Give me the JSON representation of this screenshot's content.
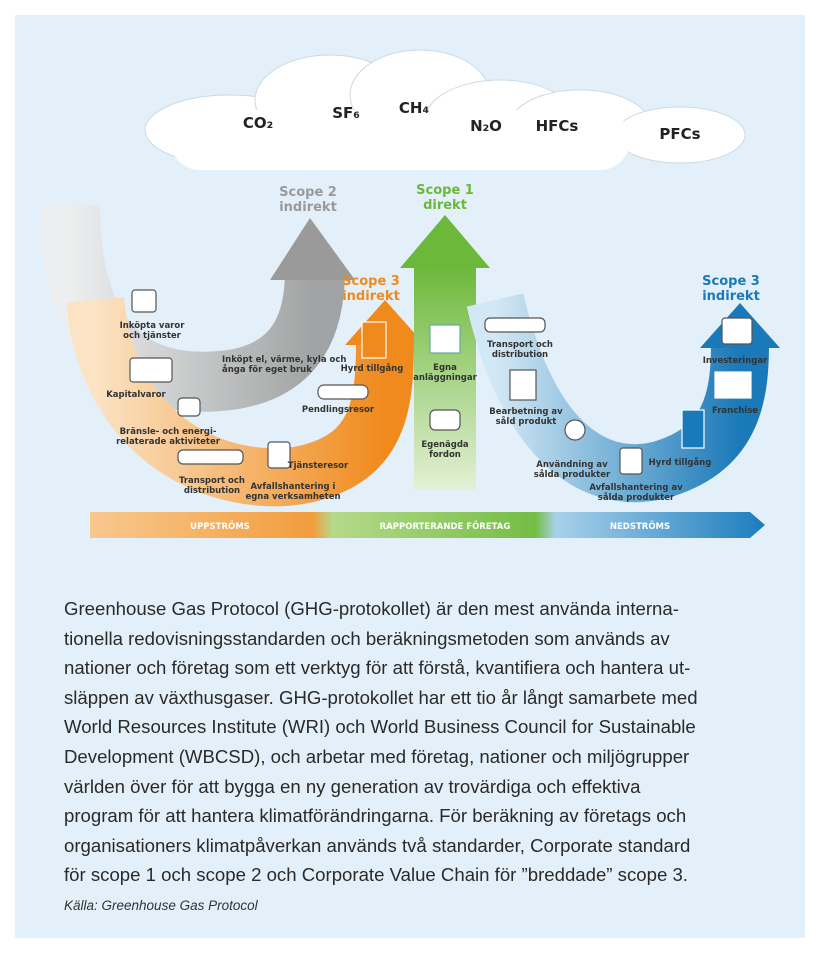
{
  "gases": [
    "CO₂",
    "SF₆",
    "CH₄",
    "N₂O",
    "HFCs",
    "PFCs"
  ],
  "scopes": {
    "scope2": [
      "Scope 2",
      "indirekt"
    ],
    "scope1": [
      "Scope 1",
      "direkt"
    ],
    "scope3_up": [
      "Scope 3",
      "indirekt"
    ],
    "scope3_down": [
      "Scope 3",
      "indirekt"
    ]
  },
  "upstream_labels": [
    [
      "Inköpta varor",
      "och tjänster"
    ],
    [
      "Kapitalvaror"
    ],
    [
      "Bränsle- och energi-",
      "relaterade aktiviteter"
    ],
    [
      "Transport och",
      "distribution"
    ],
    [
      "Avfallshantering i",
      "egna verksamheten"
    ],
    [
      "Inköpt el, värme, kyla och",
      "ånga för eget bruk"
    ],
    [
      "Tjänsteresor"
    ],
    [
      "Pendlingsresor"
    ],
    [
      "Hyrd tillgång"
    ]
  ],
  "direct_labels": [
    [
      "Egna",
      "anläggningar"
    ],
    [
      "Egenägda",
      "fordon"
    ]
  ],
  "downstream_labels": [
    [
      "Transport och",
      "distribution"
    ],
    [
      "Bearbetning av",
      "såld produkt"
    ],
    [
      "Användning av",
      "sålda produkter"
    ],
    [
      "Avfallshantering av",
      "sålda produkter"
    ],
    [
      "Hyrd tillgång"
    ],
    [
      "Investeringar"
    ],
    [
      "Franchise"
    ]
  ],
  "flow_bar": [
    "UPPSTRÖMS",
    "RAPPORTERANDE FÖRETAG",
    "NEDSTRÖMS"
  ],
  "body": {
    "lines": [
      "Greenhouse Gas Protocol (GHG-protokollet) är den mest använda interna-",
      "tionella redovisningsstandarden och beräkningsmetoden som används av",
      "nationer och företag som ett verktyg för att förstå, kvantifiera och hantera ut-",
      "släppen av växthusgaser. GHG-protokollet har ett tio år långt samarbete med",
      "World Resources Institute (WRI) och World Business Council for Sustainable",
      "Development (WBCSD), och arbetar med företag, nationer och miljögrupper",
      "världen över för att bygga en ny generation av trovärdiga och effektiva",
      "program för att hantera klimatförändringarna. För beräkning av företags och",
      "organisationers klimatpåverkan används två standarder, Corporate standard",
      "för scope 1 och scope 2 och Corporate Value Chain för ”breddade” scope 3."
    ],
    "source": "Källa: Greenhouse Gas Protocol"
  }
}
